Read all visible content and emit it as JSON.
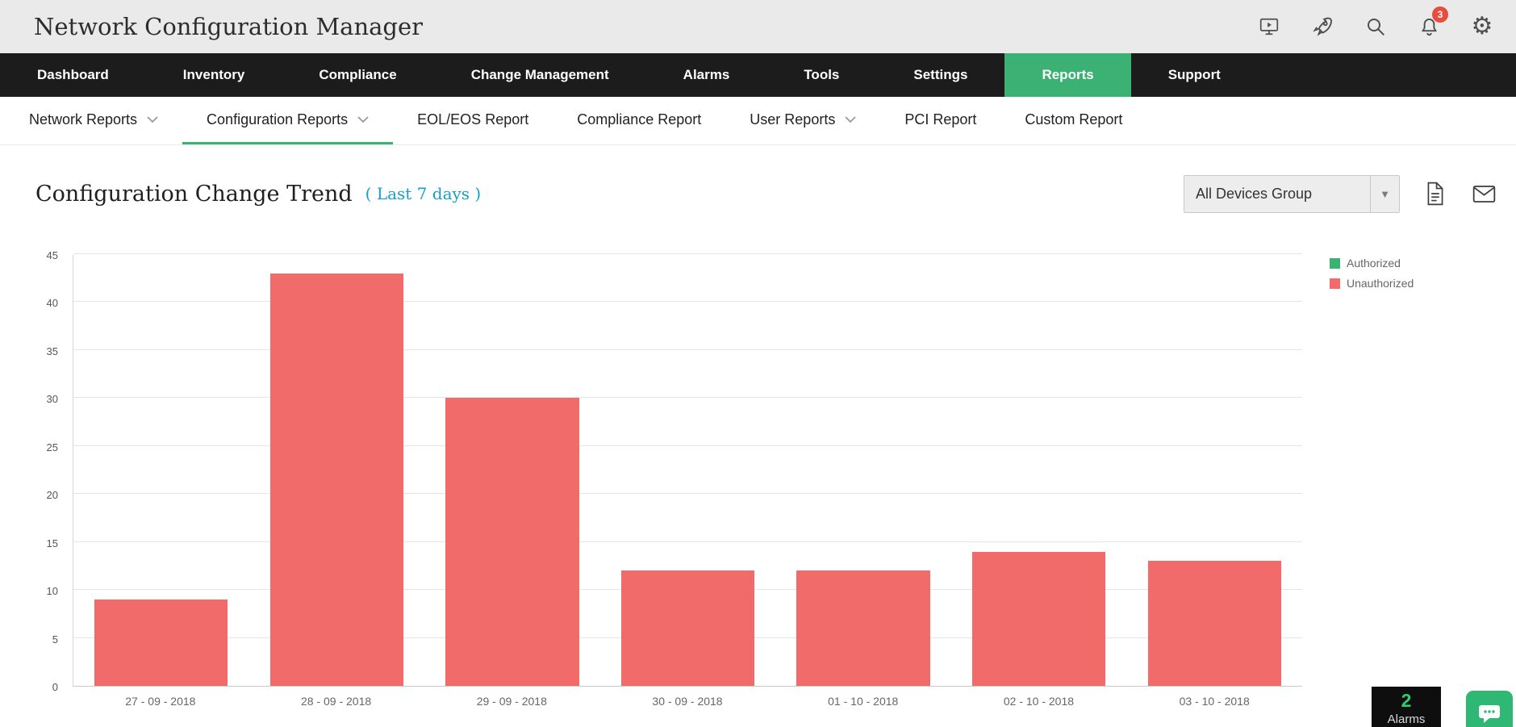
{
  "colors": {
    "accent_green": "#3bb273",
    "bar_red": "#f26b6b",
    "period_blue": "#189fc7"
  },
  "header": {
    "title": "Network Configuration Manager",
    "notification_count": "3",
    "icons": [
      "screen-share-icon",
      "rocket-icon",
      "search-icon",
      "bell-icon",
      "gear-icon"
    ]
  },
  "nav": {
    "items": [
      {
        "label": "Dashboard",
        "active": false
      },
      {
        "label": "Inventory",
        "active": false
      },
      {
        "label": "Compliance",
        "active": false
      },
      {
        "label": "Change Management",
        "active": false
      },
      {
        "label": "Alarms",
        "active": false
      },
      {
        "label": "Tools",
        "active": false
      },
      {
        "label": "Settings",
        "active": false
      },
      {
        "label": "Reports",
        "active": true
      },
      {
        "label": "Support",
        "active": false
      }
    ]
  },
  "subnav": {
    "items": [
      {
        "label": "Network Reports",
        "dropdown": true,
        "active": false
      },
      {
        "label": "Configuration Reports",
        "dropdown": true,
        "active": true
      },
      {
        "label": "EOL/EOS Report",
        "dropdown": false,
        "active": false
      },
      {
        "label": "Compliance Report",
        "dropdown": false,
        "active": false
      },
      {
        "label": "User Reports",
        "dropdown": true,
        "active": false
      },
      {
        "label": "PCI Report",
        "dropdown": false,
        "active": false
      },
      {
        "label": "Custom Report",
        "dropdown": false,
        "active": false
      }
    ]
  },
  "report": {
    "title": "Configuration Change Trend",
    "period": "( Last 7 days )",
    "device_group": "All Devices Group"
  },
  "chart_data": {
    "type": "bar",
    "title": "Configuration Change Trend",
    "categories": [
      "27 - 09 - 2018",
      "28 - 09 - 2018",
      "29 - 09 - 2018",
      "30 - 09 - 2018",
      "01 - 10 - 2018",
      "02 - 10 - 2018",
      "03 - 10 - 2018"
    ],
    "series": [
      {
        "name": "Authorized",
        "color": "#3bb273",
        "values": [
          0,
          0,
          0,
          0,
          0,
          0,
          0
        ]
      },
      {
        "name": "Unauthorized",
        "color": "#f26b6b",
        "values": [
          9,
          43,
          30,
          12,
          12,
          14,
          13
        ]
      }
    ],
    "xlabel": "",
    "ylabel": "",
    "ylim": [
      0,
      45
    ],
    "ytick_step": 5,
    "grid": true,
    "legend_position": "top-right"
  },
  "footer": {
    "alarms_count": "2",
    "alarms_label": "Alarms"
  }
}
